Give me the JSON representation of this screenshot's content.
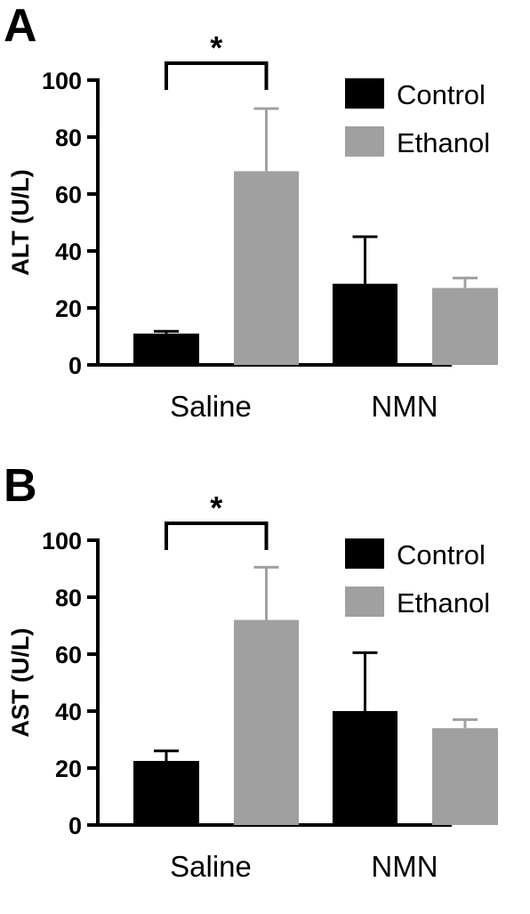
{
  "chart_data": [
    {
      "panel_label": "A",
      "type": "bar",
      "categories": [
        "Saline",
        "NMN"
      ],
      "ylabel": "ALT (U/L)",
      "ylim": [
        0,
        100
      ],
      "yticks": [
        0,
        20,
        40,
        60,
        80,
        100
      ],
      "series": [
        {
          "name": "Control",
          "color": "#000000",
          "values": [
            11,
            28.5
          ],
          "error": [
            0.8,
            16.5
          ]
        },
        {
          "name": "Ethanol",
          "color": "#a0a0a0",
          "values": [
            68,
            27
          ],
          "error": [
            22,
            3.5
          ]
        }
      ],
      "significance": {
        "label": "*",
        "between": [
          [
            "Saline",
            "Control"
          ],
          [
            "Saline",
            "Ethanol"
          ]
        ]
      },
      "legend_position": "top-right"
    },
    {
      "panel_label": "B",
      "type": "bar",
      "categories": [
        "Saline",
        "NMN"
      ],
      "ylabel": "AST (U/L)",
      "ylim": [
        0,
        100
      ],
      "yticks": [
        0,
        20,
        40,
        60,
        80,
        100
      ],
      "series": [
        {
          "name": "Control",
          "color": "#000000",
          "values": [
            22.5,
            40
          ],
          "error": [
            3.5,
            20.5
          ]
        },
        {
          "name": "Ethanol",
          "color": "#a0a0a0",
          "values": [
            72,
            34
          ],
          "error": [
            18.5,
            3
          ]
        }
      ],
      "significance": {
        "label": "*",
        "between": [
          [
            "Saline",
            "Control"
          ],
          [
            "Saline",
            "Ethanol"
          ]
        ]
      },
      "legend_position": "top-right"
    }
  ]
}
